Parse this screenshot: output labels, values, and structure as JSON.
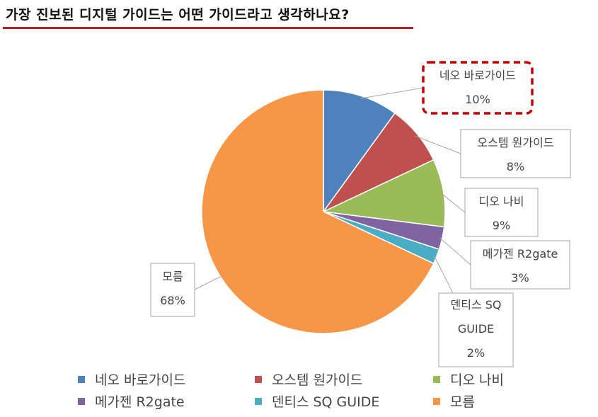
{
  "title": "가장 진보된 디지털 가이드는 어떤 가이드라고 생각하나요?",
  "chart_data": {
    "type": "pie",
    "slices": [
      {
        "label": "네오 바로가이드",
        "value": 10,
        "pct_label": "10%",
        "color": "#4f81bd"
      },
      {
        "label": "오스템 원가이드",
        "value": 8,
        "pct_label": "8%",
        "color": "#c0504d"
      },
      {
        "label": "디오 나비",
        "value": 9,
        "pct_label": "9%",
        "color": "#9bbb59"
      },
      {
        "label": "메가젠 R2gate",
        "value": 3,
        "pct_label": "3%",
        "color": "#8064a2"
      },
      {
        "label": "덴티스 SQ GUIDE",
        "value": 2,
        "pct_label": "2%",
        "color": "#4bacc6"
      },
      {
        "label": "모름",
        "value": 68,
        "pct_label": "68%",
        "color": "#f79646"
      }
    ],
    "highlighted_slice": "네오 바로가이드",
    "legend_position": "bottom"
  }
}
